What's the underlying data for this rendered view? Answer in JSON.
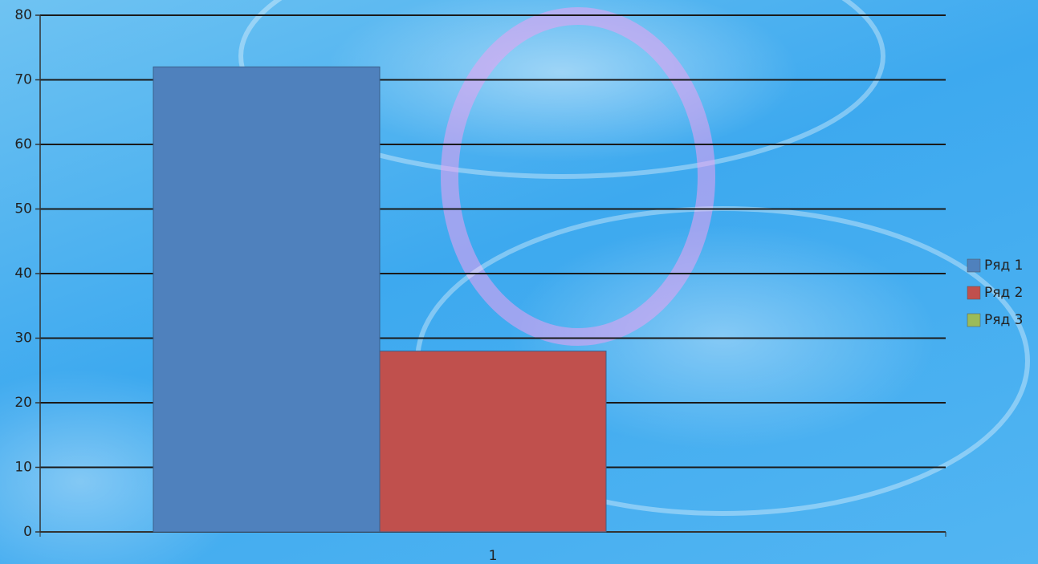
{
  "chart_data": {
    "type": "bar",
    "categories": [
      "1"
    ],
    "series": [
      {
        "name": "Ряд 1",
        "color": "#4f81bd",
        "values": [
          72
        ]
      },
      {
        "name": "Ряд 2",
        "color": "#c0504d",
        "values": [
          28
        ]
      },
      {
        "name": "Ряд 3",
        "color": "#9bbb59",
        "values": [
          0
        ]
      }
    ],
    "ylim": [
      0,
      80
    ],
    "yticks": [
      0,
      10,
      20,
      30,
      40,
      50,
      60,
      70,
      80
    ],
    "grid": true,
    "legend": "right"
  }
}
